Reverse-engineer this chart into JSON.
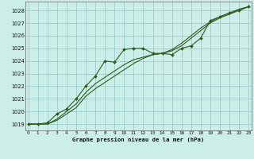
{
  "title": "Graphe pression niveau de la mer (hPa)",
  "background_color": "#cceee8",
  "grid_color": "#99cccc",
  "line_color_main": "#2d5a1e",
  "xlim": [
    -0.3,
    23.3
  ],
  "ylim": [
    1018.5,
    1028.7
  ],
  "yticks": [
    1019,
    1020,
    1021,
    1022,
    1023,
    1024,
    1025,
    1026,
    1027,
    1028
  ],
  "xticks": [
    0,
    1,
    2,
    3,
    4,
    5,
    6,
    7,
    8,
    9,
    10,
    11,
    12,
    13,
    14,
    15,
    16,
    17,
    18,
    19,
    20,
    21,
    22,
    23
  ],
  "series_marked": [
    1019.0,
    1019.0,
    1019.1,
    1019.8,
    1020.2,
    1021.0,
    1022.0,
    1022.8,
    1024.0,
    1023.9,
    1024.9,
    1025.0,
    1025.0,
    1024.6,
    1024.6,
    1024.5,
    1025.0,
    1025.2,
    1025.8,
    1027.2,
    1027.5,
    1027.8,
    1028.0,
    1028.3
  ],
  "series_smooth1": [
    1019.0,
    1019.0,
    1019.0,
    1019.3,
    1019.8,
    1020.3,
    1021.2,
    1021.8,
    1022.3,
    1022.8,
    1023.3,
    1023.8,
    1024.2,
    1024.5,
    1024.6,
    1024.8,
    1025.2,
    1025.8,
    1026.4,
    1027.0,
    1027.4,
    1027.7,
    1028.0,
    1028.3
  ],
  "series_smooth2": [
    1019.0,
    1019.0,
    1019.0,
    1019.4,
    1020.0,
    1020.6,
    1021.5,
    1022.2,
    1022.7,
    1023.2,
    1023.7,
    1024.1,
    1024.3,
    1024.5,
    1024.6,
    1024.9,
    1025.4,
    1026.0,
    1026.6,
    1027.1,
    1027.5,
    1027.8,
    1028.1,
    1028.3
  ]
}
